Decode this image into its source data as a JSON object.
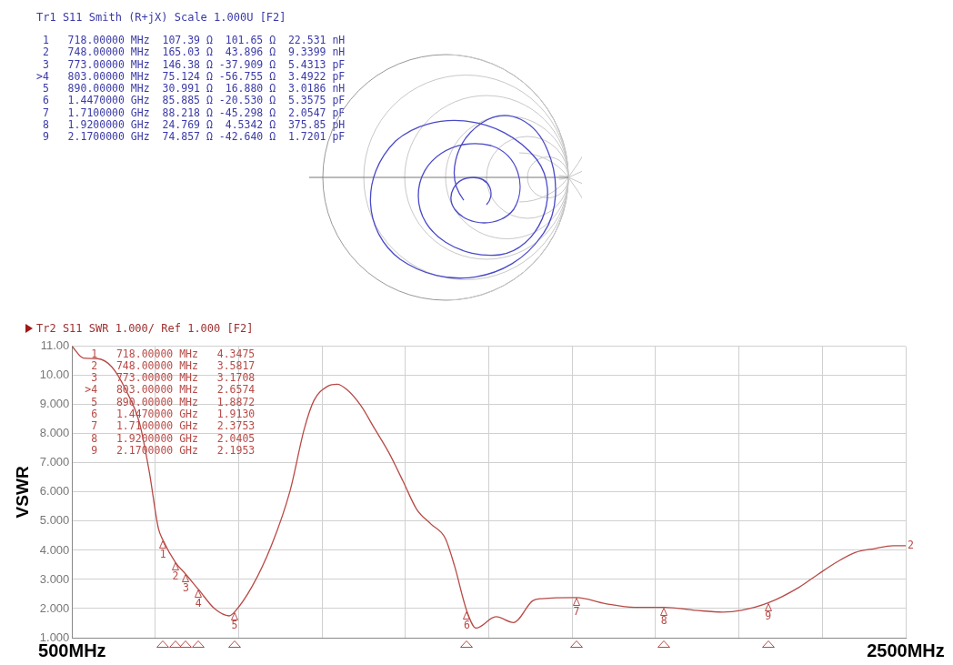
{
  "chart_data": [
    {
      "type": "other",
      "title": "Tr1 S11 Smith (R+jX) Scale 1.000U [F2]",
      "annotations": [
        " 1   718.00000 MHz  107.39 Ω  101.65 Ω  22.531 nH",
        " 2   748.00000 MHz  165.03 Ω  43.896 Ω  9.3399 nH",
        " 3   773.00000 MHz  146.38 Ω -37.909 Ω  5.4313 pF",
        ">4   803.00000 MHz  75.124 Ω -56.755 Ω  3.4922 pF",
        " 5   890.00000 MHz  30.991 Ω  16.880 Ω  3.0186 nH",
        " 6   1.4470000 GHz  85.885 Ω -20.530 Ω  5.3575 pF",
        " 7   1.7100000 GHz  88.218 Ω -45.298 Ω  2.0547 pF",
        " 8   1.9200000 GHz  24.769 Ω  4.5342 Ω  375.85 pH",
        " 9   2.1700000 GHz  74.857 Ω -42.640 Ω  1.7201 pF"
      ]
    },
    {
      "type": "line",
      "title": "Tr2 S11 SWR 1.000/ Ref 1.000 [F2]",
      "ylabel": "VSWR",
      "x": [
        500,
        527,
        561,
        595,
        629,
        662,
        685,
        707,
        718,
        748,
        773,
        803,
        843,
        877,
        890,
        933,
        978,
        1023,
        1057,
        1080,
        1113,
        1136,
        1158,
        1192,
        1226,
        1260,
        1294,
        1327,
        1361,
        1395,
        1418,
        1447,
        1469,
        1517,
        1559,
        1605,
        1627,
        1710,
        1780,
        1849,
        1920,
        1996,
        2061,
        2106,
        2170,
        2244,
        2290,
        2335,
        2380,
        2425,
        2470,
        2500
      ],
      "series": [
        {
          "color": "#b84a46",
          "values": [
            11.0,
            10.6,
            10.58,
            10.3,
            9.5,
            8.35,
            6.7,
            4.75,
            4.3475,
            3.5817,
            3.1708,
            2.6574,
            1.98,
            1.75,
            1.8872,
            2.79,
            4.16,
            6.05,
            8.17,
            9.14,
            9.63,
            9.7,
            9.53,
            8.98,
            8.17,
            7.35,
            6.37,
            5.4,
            4.9,
            4.42,
            3.44,
            1.913,
            1.33,
            1.72,
            1.52,
            2.27,
            2.34,
            2.3753,
            2.17,
            2.04,
            2.0405,
            1.94,
            1.88,
            1.94,
            2.1953,
            2.73,
            3.18,
            3.6,
            3.93,
            4.06,
            4.16,
            4.16
          ]
        }
      ],
      "xlim": [
        500,
        2500
      ],
      "xticks": [
        {
          "value": 500,
          "label": "500MHz"
        },
        {
          "value": 700,
          "label": null
        },
        {
          "value": 900,
          "label": null
        },
        {
          "value": 1100,
          "label": null
        },
        {
          "value": 1300,
          "label": null
        },
        {
          "value": 1500,
          "label": null
        },
        {
          "value": 1700,
          "label": null
        },
        {
          "value": 1900,
          "label": null
        },
        {
          "value": 2100,
          "label": null
        },
        {
          "value": 2300,
          "label": null
        },
        {
          "value": 2500,
          "label": "2500MHz"
        }
      ],
      "ylim": [
        1,
        11
      ],
      "yticks": [
        {
          "value": 1,
          "label": "1.000"
        },
        {
          "value": 2,
          "label": "2.000"
        },
        {
          "value": 3,
          "label": "3.000"
        },
        {
          "value": 4,
          "label": "4.000"
        },
        {
          "value": 5,
          "label": "5.000"
        },
        {
          "value": 6,
          "label": "6.000"
        },
        {
          "value": 7,
          "label": "7.000"
        },
        {
          "value": 8,
          "label": "8.000"
        },
        {
          "value": 9,
          "label": "9.000"
        },
        {
          "value": 10,
          "label": "10.00"
        },
        {
          "value": 11,
          "label": "11.00"
        }
      ],
      "grid": true,
      "legend": false,
      "marker": "none",
      "line_style": "solid",
      "annotations": [
        " 1   718.00000 MHz   4.3475",
        " 2   748.00000 MHz   3.5817",
        " 3   773.00000 MHz   3.1708",
        ">4   803.00000 MHz   2.6574",
        " 5   890.00000 MHz   1.8872",
        " 6   1.4470000 GHz   1.9130",
        " 7   1.7100000 GHz   2.3753",
        " 8   1.9200000 GHz   2.0405",
        " 9   2.1700000 GHz   2.1953",
        {
          "text": "1",
          "x": 718,
          "y": 4.3475
        },
        {
          "text": "2",
          "x": 748,
          "y": 3.5817
        },
        {
          "text": "3",
          "x": 773,
          "y": 3.1708
        },
        {
          "text": "4",
          "x": 803,
          "y": 2.6574
        },
        {
          "text": "5",
          "x": 890,
          "y": 1.8872
        },
        {
          "text": "6",
          "x": 1447,
          "y": 1.913
        },
        {
          "text": "7",
          "x": 1710,
          "y": 2.3753
        },
        {
          "text": "8",
          "x": 1920,
          "y": 2.0405
        },
        {
          "text": "9",
          "x": 2170,
          "y": 2.1953
        },
        {
          "text": "2",
          "x": 2500,
          "y": 4.16
        }
      ]
    }
  ]
}
